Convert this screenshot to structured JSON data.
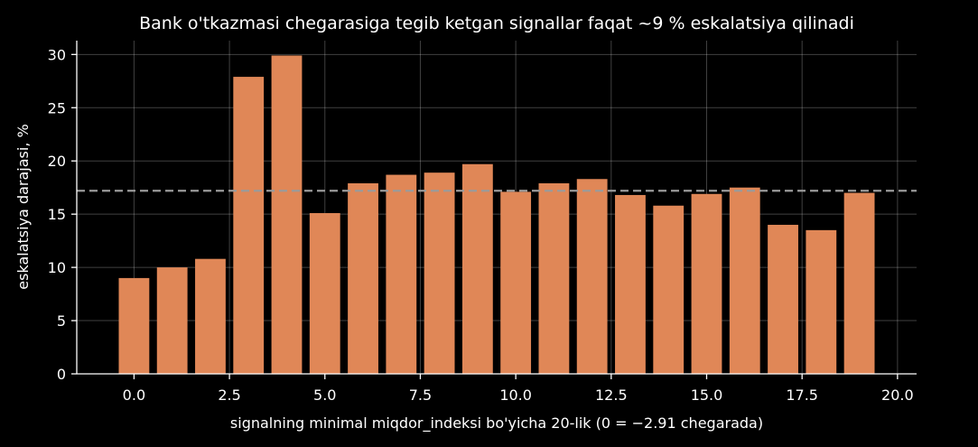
{
  "chart_data": {
    "type": "bar",
    "title": "Bank o'tkazmasi chegarasiga tegib ketgan signallar faqat ~9 % eskalatsiya qilinadi",
    "xlabel": "signalning minimal miqdor_indeksi bo'yicha 20-lik  (0 = −2.91 chegarada)",
    "ylabel": "eskalatsiya darajasi, %",
    "x": [
      0,
      1,
      2,
      3,
      4,
      5,
      6,
      7,
      8,
      9,
      10,
      11,
      12,
      13,
      14,
      15,
      16,
      17,
      18,
      19
    ],
    "values": [
      9.0,
      10.0,
      10.8,
      27.9,
      29.9,
      15.1,
      17.9,
      18.7,
      18.9,
      19.7,
      17.1,
      17.9,
      18.3,
      16.8,
      15.8,
      16.9,
      17.5,
      14.0,
      13.5,
      17.0
    ],
    "reference_line": 17.2,
    "xlim": [
      -1.5,
      20.5
    ],
    "ylim": [
      0,
      31.3
    ],
    "xticks": [
      0.0,
      2.5,
      5.0,
      7.5,
      10.0,
      12.5,
      15.0,
      17.5,
      20.0
    ],
    "xtick_labels": [
      "0.0",
      "2.5",
      "5.0",
      "7.5",
      "10.0",
      "12.5",
      "15.0",
      "17.5",
      "20.0"
    ],
    "yticks": [
      0,
      5,
      10,
      15,
      20,
      25,
      30
    ],
    "ytick_labels": [
      "0",
      "5",
      "10",
      "15",
      "20",
      "25",
      "30"
    ],
    "grid": true,
    "colors": {
      "bar": "#e08757",
      "reference_line": "#9a9a9a",
      "background": "#000000",
      "text": "#ffffff"
    }
  }
}
